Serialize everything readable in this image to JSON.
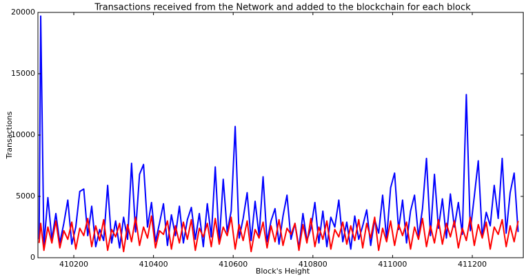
{
  "chart_data": {
    "type": "line",
    "title": "Transactions received from the Network and added to the blockchain for each block",
    "xlabel": "Block's Height",
    "ylabel": "Transactions",
    "x": [
      410113,
      410117,
      410125,
      410135,
      410145,
      410155,
      410165,
      410175,
      410185,
      410195,
      410205,
      410215,
      410225,
      410235,
      410245,
      410255,
      410265,
      410275,
      410285,
      410295,
      410305,
      410315,
      410325,
      410335,
      410345,
      410355,
      410365,
      410375,
      410385,
      410395,
      410405,
      410415,
      410425,
      410435,
      410445,
      410455,
      410465,
      410475,
      410485,
      410495,
      410505,
      410515,
      410525,
      410535,
      410545,
      410555,
      410565,
      410575,
      410585,
      410595,
      410605,
      410615,
      410625,
      410635,
      410645,
      410655,
      410665,
      410675,
      410685,
      410695,
      410705,
      410715,
      410725,
      410735,
      410745,
      410755,
      410765,
      410775,
      410785,
      410795,
      410805,
      410815,
      410825,
      410835,
      410845,
      410855,
      410865,
      410875,
      410885,
      410895,
      410905,
      410915,
      410925,
      410935,
      410945,
      410955,
      410965,
      410975,
      410985,
      410995,
      411005,
      411015,
      411025,
      411035,
      411045,
      411055,
      411065,
      411075,
      411085,
      411095,
      411105,
      411115,
      411125,
      411135,
      411145,
      411155,
      411165,
      411175,
      411185,
      411195,
      411205,
      411215,
      411225,
      411235,
      411245,
      411255,
      411265,
      411275,
      411285,
      411295,
      411305,
      411315
    ],
    "series": [
      {
        "color": "#0000ff",
        "values": [
          1500,
          19700,
          1000,
          4900,
          1500,
          3600,
          1200,
          2800,
          4700,
          1100,
          2500,
          5400,
          5600,
          1800,
          4200,
          900,
          2300,
          1400,
          5900,
          1200,
          3000,
          800,
          3300,
          1500,
          7700,
          2100,
          6800,
          7600,
          2500,
          4500,
          1300,
          2800,
          4400,
          1000,
          3500,
          1800,
          4200,
          1200,
          3100,
          4100,
          1500,
          3600,
          900,
          4400,
          1700,
          7400,
          1200,
          6400,
          2100,
          3800,
          10700,
          1600,
          3200,
          5300,
          1400,
          4600,
          1800,
          6600,
          1300,
          3000,
          4000,
          1100,
          3400,
          5100,
          1500,
          2800,
          800,
          3600,
          1400,
          2400,
          4500,
          1200,
          3800,
          900,
          3300,
          2500,
          4700,
          1300,
          2900,
          700,
          3400,
          1500,
          2600,
          3900,
          1000,
          3100,
          2000,
          5100,
          1500,
          5700,
          6900,
          2300,
          4700,
          1200,
          3800,
          5100,
          1700,
          4000,
          8100,
          1800,
          6800,
          2400,
          4800,
          1600,
          5200,
          2500,
          4500,
          1900,
          13300,
          2200,
          5000,
          7900,
          1700,
          3700,
          2600,
          5900,
          3200,
          8100,
          2000,
          5300,
          6900,
          2100
        ]
      },
      {
        "color": "#ff0000",
        "values": [
          1200,
          2800,
          600,
          2500,
          1200,
          3000,
          800,
          2200,
          1500,
          2900,
          700,
          2400,
          1800,
          3200,
          900,
          2600,
          1400,
          3100,
          600,
          2300,
          1700,
          2800,
          500,
          2700,
          1300,
          3300,
          1000,
          2500,
          1600,
          3400,
          800,
          2200,
          1900,
          3000,
          700,
          2600,
          1200,
          2900,
          1500,
          3100,
          600,
          2400,
          1700,
          2800,
          900,
          3200,
          1100,
          2500,
          1800,
          3300,
          700,
          2700,
          1400,
          3000,
          500,
          2300,
          1600,
          2900,
          800,
          2600,
          1300,
          3100,
          1000,
          2400,
          1900,
          2800,
          600,
          2700,
          1200,
          3200,
          900,
          2500,
          1500,
          3000,
          700,
          2300,
          1700,
          2900,
          1100,
          2600,
          1400,
          3100,
          800,
          2800,
          1600,
          3300,
          600,
          2400,
          1300,
          3000,
          1000,
          2700,
          1800,
          2900,
          700,
          2500,
          1500,
          3200,
          900,
          2600,
          1200,
          3100,
          1100,
          2800,
          1700,
          3000,
          800,
          2400,
          1400,
          3300,
          1000,
          2700,
          1600,
          2900,
          700,
          2500,
          1900,
          3100,
          900,
          2600,
          1300,
          3000
        ]
      }
    ],
    "xlim": [
      410110,
      411328
    ],
    "xticks": [
      410200,
      410400,
      410600,
      410800,
      411000,
      411200
    ],
    "ylim": [
      0,
      20000
    ],
    "yticks": [
      0,
      5000,
      10000,
      15000,
      20000
    ]
  }
}
